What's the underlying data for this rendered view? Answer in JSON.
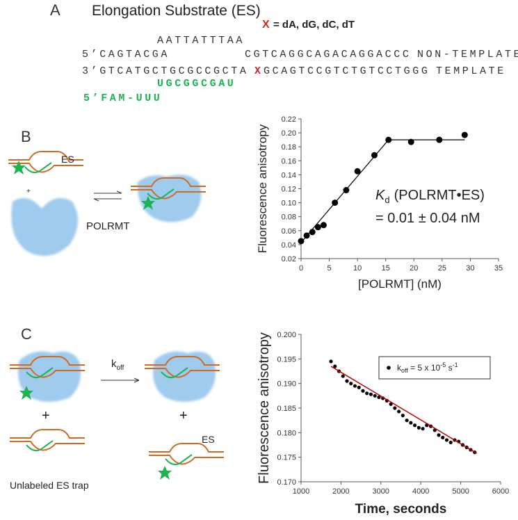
{
  "panel_a": {
    "label": "A",
    "title": "Elongation Substrate (ES)",
    "x_mark": "X",
    "x_meaning": "= dA, dG, dC, dT",
    "loop_sequence": "AATTATTTAA",
    "nontemplate_left": "5’CAGTACGA",
    "nontemplate_right": "CGTCAGGCAGACAGGACCC",
    "nontemplate_label": "NON-TEMPLATE",
    "template_left": "3’GTCATGCTGCGCCGCTA",
    "template_x": "X",
    "template_right": "GCAGTCCGTCTGTCCTGGG",
    "template_label": "TEMPLATE",
    "rna": "UGCGGCGAU",
    "rna_label": "5’FAM-UUU"
  },
  "panel_b": {
    "label": "B",
    "es": "ES",
    "plus": "+",
    "enzyme": "POLRMT"
  },
  "panel_c": {
    "label": "C",
    "rate_symbol": "k",
    "rate_subscript": "off",
    "plus_left": "+",
    "plus_right": "+",
    "es": "ES",
    "trap": "Unlabeled ES trap"
  },
  "chart_data": [
    {
      "type": "scatter",
      "xlabel": "[POLRMT]  (nM)",
      "ylabel": "Fluorescence  anisotropy",
      "annotation": {
        "symbol": "K",
        "subscript": "d",
        "text": "(POLRMT•ES)",
        "value": "= 0.01 ± 0.04 nM"
      },
      "series": [
        {
          "style": "points",
          "color": "#000000",
          "x": [
            0,
            1,
            2,
            3,
            4,
            6,
            8,
            10,
            13,
            15.5,
            19.5,
            24.5,
            29
          ],
          "values": [
            0.045,
            0.053,
            0.058,
            0.065,
            0.068,
            0.1,
            0.118,
            0.145,
            0.168,
            0.19,
            0.187,
            0.19,
            0.197
          ]
        },
        {
          "style": "line",
          "color": "#000000",
          "x": [
            0,
            15.5,
            29
          ],
          "values": [
            0.043,
            0.19,
            0.19
          ]
        }
      ],
      "xlim": [
        0,
        35
      ],
      "xticks": [
        0,
        5,
        10,
        15,
        20,
        25,
        30,
        35
      ],
      "ylim": [
        0.02,
        0.22
      ],
      "yticks": [
        0.02,
        0.04,
        0.06,
        0.08,
        {
          "value": 0.1,
          "label": "0.10"
        },
        0.12,
        0.14,
        0.16,
        0.18,
        {
          "value": 0.2,
          "label": "0.20"
        },
        0.22
      ]
    },
    {
      "type": "scatter",
      "xlabel": "Time, seconds",
      "ylabel": "Fluorescence anisotropy",
      "legend": "upper right",
      "series": [
        {
          "style": "points",
          "color": "#000000",
          "name": [
            "k",
            "off",
            " = 5 x 10",
            "-5",
            " s",
            "-1"
          ],
          "x": [
            1750,
            1850,
            1950,
            2050,
            2150,
            2250,
            2350,
            2450,
            2550,
            2650,
            2750,
            2850,
            2950,
            3050,
            3150,
            3250,
            3350,
            3450,
            3550,
            3650,
            3750,
            3850,
            3950,
            4050,
            4150,
            4250,
            4350,
            4450,
            4550,
            4650,
            4750,
            4850,
            4950,
            5050,
            5150,
            5250,
            5350
          ],
          "values": [
            0.1945,
            0.1935,
            0.1925,
            0.1915,
            0.1905,
            0.19,
            0.1895,
            0.1892,
            0.1885,
            0.188,
            0.1878,
            0.1875,
            0.1872,
            0.187,
            0.1865,
            0.1858,
            0.185,
            0.1843,
            0.1835,
            0.1825,
            0.182,
            0.1815,
            0.181,
            0.1808,
            0.1815,
            0.1813,
            0.1805,
            0.1795,
            0.179,
            0.1785,
            0.178,
            0.1785,
            0.1782,
            0.1775,
            0.177,
            0.1765,
            0.176
          ]
        },
        {
          "style": "line",
          "color": "#c00000",
          "x": [
            1750,
            5400
          ],
          "values": [
            0.1935,
            0.1758
          ]
        }
      ],
      "xlim": [
        1000,
        6000
      ],
      "xticks": [
        1000,
        2000,
        3000,
        4000,
        5000,
        6000
      ],
      "ylim": [
        0.17,
        0.2
      ],
      "yticks": [
        {
          "value": 0.17,
          "label": "0.170"
        },
        {
          "value": 0.175,
          "label": "0.175"
        },
        {
          "value": 0.18,
          "label": "0.180"
        },
        {
          "value": 0.185,
          "label": "0.185"
        },
        {
          "value": 0.19,
          "label": "0.190"
        },
        {
          "value": 0.195,
          "label": "0.195"
        },
        {
          "value": 0.2,
          "label": "0.200"
        }
      ]
    }
  ]
}
